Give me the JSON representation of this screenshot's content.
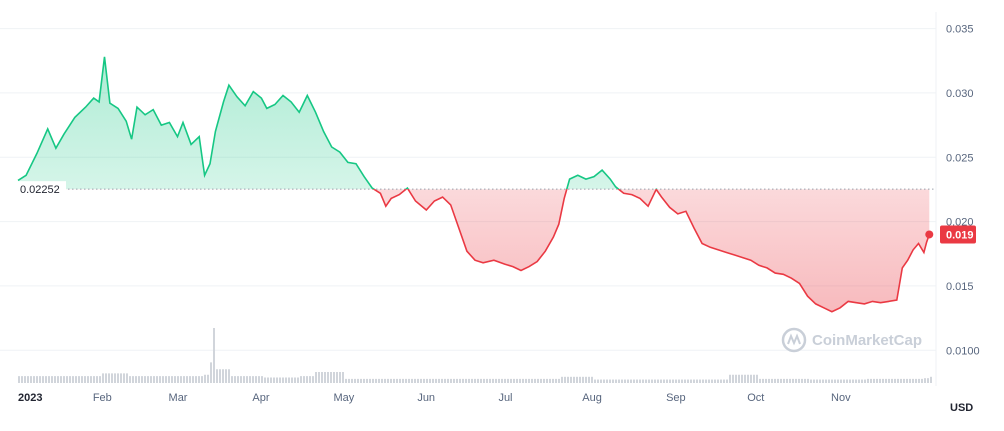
{
  "chart_data": {
    "type": "area",
    "currency_label": "USD",
    "watermark": "CoinMarketCap",
    "baseline_value": 0.02252,
    "baseline_label": "0.02252",
    "current_value": 0.019,
    "current_label": "0.019",
    "colors": {
      "up": "#16c784",
      "down": "#ea3943",
      "grid": "#eff2f5",
      "volume": "#d1d5db",
      "text": "#58667e"
    },
    "y_axis": {
      "ylim": [
        0.0073,
        0.0366
      ],
      "ticks": [
        {
          "value": 0.035,
          "label": "0.035"
        },
        {
          "value": 0.03,
          "label": "0.030"
        },
        {
          "value": 0.025,
          "label": "0.025"
        },
        {
          "value": 0.02,
          "label": "0.020"
        },
        {
          "value": 0.015,
          "label": "0.015"
        },
        {
          "value": 0.01,
          "label": "0.0100"
        }
      ]
    },
    "x_axis": {
      "start": "2023-01-01",
      "end": "2023-12-05",
      "ticks": [
        {
          "date": "2023-01-01",
          "label": "2023",
          "bold": true
        },
        {
          "date": "2023-02-01",
          "label": "Feb",
          "bold": false
        },
        {
          "date": "2023-03-01",
          "label": "Mar",
          "bold": false
        },
        {
          "date": "2023-04-01",
          "label": "Apr",
          "bold": false
        },
        {
          "date": "2023-05-01",
          "label": "May",
          "bold": false
        },
        {
          "date": "2023-06-01",
          "label": "Jun",
          "bold": false
        },
        {
          "date": "2023-07-01",
          "label": "Jul",
          "bold": false
        },
        {
          "date": "2023-08-01",
          "label": "Aug",
          "bold": false
        },
        {
          "date": "2023-09-01",
          "label": "Sep",
          "bold": false
        },
        {
          "date": "2023-10-01",
          "label": "Oct",
          "bold": false
        },
        {
          "date": "2023-11-01",
          "label": "Nov",
          "bold": false
        }
      ]
    },
    "series": [
      {
        "points": [
          [
            "2023-01-01",
            0.0232
          ],
          [
            "2023-01-04",
            0.0236
          ],
          [
            "2023-01-08",
            0.0253
          ],
          [
            "2023-01-12",
            0.0272
          ],
          [
            "2023-01-15",
            0.0257
          ],
          [
            "2023-01-18",
            0.0268
          ],
          [
            "2023-01-22",
            0.0281
          ],
          [
            "2023-01-26",
            0.0289
          ],
          [
            "2023-01-29",
            0.0296
          ],
          [
            "2023-01-31",
            0.0293
          ],
          [
            "2023-02-02",
            0.0328
          ],
          [
            "2023-02-04",
            0.0292
          ],
          [
            "2023-02-07",
            0.0288
          ],
          [
            "2023-02-10",
            0.0278
          ],
          [
            "2023-02-12",
            0.0264
          ],
          [
            "2023-02-14",
            0.0289
          ],
          [
            "2023-02-17",
            0.0283
          ],
          [
            "2023-02-20",
            0.0287
          ],
          [
            "2023-02-23",
            0.0275
          ],
          [
            "2023-02-26",
            0.0277
          ],
          [
            "2023-03-01",
            0.0266
          ],
          [
            "2023-03-03",
            0.0277
          ],
          [
            "2023-03-06",
            0.026
          ],
          [
            "2023-03-09",
            0.0266
          ],
          [
            "2023-03-11",
            0.0236
          ],
          [
            "2023-03-13",
            0.0245
          ],
          [
            "2023-03-15",
            0.027
          ],
          [
            "2023-03-18",
            0.0293
          ],
          [
            "2023-03-20",
            0.0306
          ],
          [
            "2023-03-23",
            0.0297
          ],
          [
            "2023-03-26",
            0.029
          ],
          [
            "2023-03-29",
            0.0301
          ],
          [
            "2023-04-01",
            0.0296
          ],
          [
            "2023-04-03",
            0.0288
          ],
          [
            "2023-04-06",
            0.0291
          ],
          [
            "2023-04-09",
            0.0298
          ],
          [
            "2023-04-12",
            0.0293
          ],
          [
            "2023-04-15",
            0.0285
          ],
          [
            "2023-04-18",
            0.0298
          ],
          [
            "2023-04-21",
            0.0285
          ],
          [
            "2023-04-24",
            0.027
          ],
          [
            "2023-04-27",
            0.0258
          ],
          [
            "2023-04-30",
            0.0254
          ],
          [
            "2023-05-03",
            0.0246
          ],
          [
            "2023-05-06",
            0.0245
          ],
          [
            "2023-05-09",
            0.0235
          ],
          [
            "2023-05-12",
            0.0226
          ],
          [
            "2023-05-15",
            0.0222
          ],
          [
            "2023-05-17",
            0.0212
          ],
          [
            "2023-05-19",
            0.0218
          ],
          [
            "2023-05-22",
            0.0221
          ],
          [
            "2023-05-25",
            0.0226
          ],
          [
            "2023-05-28",
            0.0216
          ],
          [
            "2023-06-01",
            0.0209
          ],
          [
            "2023-06-04",
            0.0216
          ],
          [
            "2023-06-07",
            0.0219
          ],
          [
            "2023-06-10",
            0.0213
          ],
          [
            "2023-06-13",
            0.0195
          ],
          [
            "2023-06-16",
            0.0177
          ],
          [
            "2023-06-19",
            0.017
          ],
          [
            "2023-06-22",
            0.0168
          ],
          [
            "2023-06-26",
            0.017
          ],
          [
            "2023-06-30",
            0.0167
          ],
          [
            "2023-07-03",
            0.0165
          ],
          [
            "2023-07-06",
            0.0162
          ],
          [
            "2023-07-09",
            0.0165
          ],
          [
            "2023-07-12",
            0.0169
          ],
          [
            "2023-07-15",
            0.0177
          ],
          [
            "2023-07-18",
            0.0188
          ],
          [
            "2023-07-20",
            0.0198
          ],
          [
            "2023-07-22",
            0.0218
          ],
          [
            "2023-07-24",
            0.0233
          ],
          [
            "2023-07-27",
            0.0236
          ],
          [
            "2023-07-30",
            0.0233
          ],
          [
            "2023-08-02",
            0.0235
          ],
          [
            "2023-08-05",
            0.024
          ],
          [
            "2023-08-08",
            0.0233
          ],
          [
            "2023-08-10",
            0.0227
          ],
          [
            "2023-08-13",
            0.0222
          ],
          [
            "2023-08-16",
            0.0221
          ],
          [
            "2023-08-19",
            0.0218
          ],
          [
            "2023-08-22",
            0.0212
          ],
          [
            "2023-08-25",
            0.0225
          ],
          [
            "2023-08-27",
            0.0219
          ],
          [
            "2023-08-30",
            0.0211
          ],
          [
            "2023-09-02",
            0.0206
          ],
          [
            "2023-09-05",
            0.0208
          ],
          [
            "2023-09-08",
            0.0195
          ],
          [
            "2023-09-11",
            0.0183
          ],
          [
            "2023-09-14",
            0.018
          ],
          [
            "2023-09-17",
            0.0178
          ],
          [
            "2023-09-20",
            0.0176
          ],
          [
            "2023-09-23",
            0.0174
          ],
          [
            "2023-09-26",
            0.0172
          ],
          [
            "2023-09-29",
            0.017
          ],
          [
            "2023-10-02",
            0.0166
          ],
          [
            "2023-10-05",
            0.0164
          ],
          [
            "2023-10-08",
            0.016
          ],
          [
            "2023-10-11",
            0.0159
          ],
          [
            "2023-10-14",
            0.0156
          ],
          [
            "2023-10-17",
            0.0152
          ],
          [
            "2023-10-20",
            0.0142
          ],
          [
            "2023-10-23",
            0.0136
          ],
          [
            "2023-10-26",
            0.0133
          ],
          [
            "2023-10-29",
            0.013
          ],
          [
            "2023-11-01",
            0.0133
          ],
          [
            "2023-11-04",
            0.0138
          ],
          [
            "2023-11-07",
            0.0137
          ],
          [
            "2023-11-10",
            0.0136
          ],
          [
            "2023-11-13",
            0.0138
          ],
          [
            "2023-11-16",
            0.0137
          ],
          [
            "2023-11-19",
            0.0138
          ],
          [
            "2023-11-22",
            0.0139
          ],
          [
            "2023-11-24",
            0.0164
          ],
          [
            "2023-11-26",
            0.017
          ],
          [
            "2023-11-28",
            0.0178
          ],
          [
            "2023-11-30",
            0.0183
          ],
          [
            "2023-12-02",
            0.0176
          ],
          [
            "2023-12-03",
            0.0184
          ],
          [
            "2023-12-04",
            0.019
          ]
        ]
      }
    ],
    "volume": {
      "points": [
        [
          "2023-01-01",
          1
        ],
        [
          "2023-01-10",
          1
        ],
        [
          "2023-01-20",
          1
        ],
        [
          "2023-02-01",
          1.4
        ],
        [
          "2023-02-10",
          1
        ],
        [
          "2023-02-20",
          1
        ],
        [
          "2023-03-01",
          1
        ],
        [
          "2023-03-10",
          1.2
        ],
        [
          "2023-03-13",
          3
        ],
        [
          "2023-03-14",
          8
        ],
        [
          "2023-03-15",
          2
        ],
        [
          "2023-03-20",
          1
        ],
        [
          "2023-04-01",
          0.8
        ],
        [
          "2023-04-15",
          1
        ],
        [
          "2023-04-20",
          1.6
        ],
        [
          "2023-05-01",
          0.6
        ],
        [
          "2023-05-15",
          0.6
        ],
        [
          "2023-06-01",
          0.6
        ],
        [
          "2023-07-01",
          0.6
        ],
        [
          "2023-07-20",
          0.9
        ],
        [
          "2023-08-01",
          0.5
        ],
        [
          "2023-09-01",
          0.5
        ],
        [
          "2023-09-20",
          1.2
        ],
        [
          "2023-10-01",
          0.6
        ],
        [
          "2023-10-20",
          0.5
        ],
        [
          "2023-11-10",
          0.6
        ],
        [
          "2023-12-01",
          0.7
        ],
        [
          "2023-12-04",
          0.9
        ]
      ]
    }
  }
}
